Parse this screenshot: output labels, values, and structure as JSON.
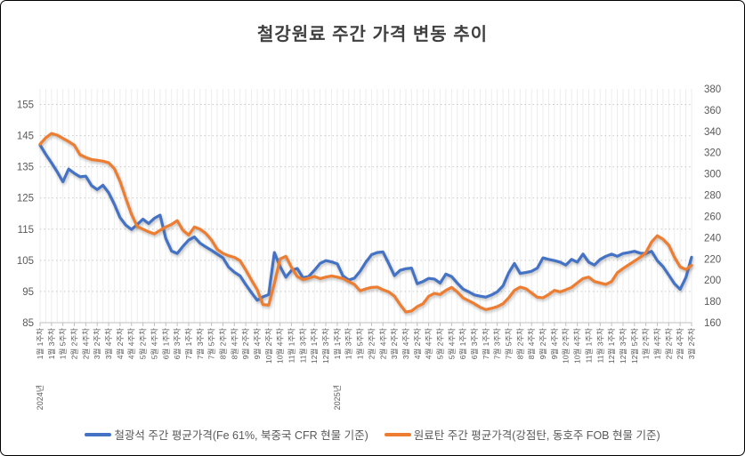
{
  "title": "철강원료 주간 가격 변동 추이",
  "chart_data": {
    "type": "line",
    "title": "철강원료 주간 가격 변동 추이",
    "grid": {
      "vertical": "every-week",
      "horizontal": "dotted-left-axis-major"
    },
    "legend_position": "bottom",
    "left_axis": {
      "min": 85,
      "max": 160,
      "ticks": [
        85,
        95,
        105,
        115,
        125,
        135,
        145,
        155
      ]
    },
    "right_axis": {
      "min": 160,
      "max": 380,
      "ticks": [
        160,
        180,
        200,
        220,
        240,
        260,
        280,
        300,
        320,
        340,
        360,
        380
      ]
    },
    "x_label_every_n_weeks": 2,
    "x_labels": [
      "1월 1주차",
      "1월 3주차",
      "1월 5주차",
      "2월 2주차",
      "2월 4주차",
      "3월 2주차",
      "3월 4주차",
      "4월 2주차",
      "4월 4주차",
      "5월 2주차",
      "5월 4주차",
      "6월 1주차",
      "6월 3주차",
      "7월 1주차",
      "7월 3주차",
      "7월 5주차",
      "8월 2주차",
      "8월 4주차",
      "9월 2주차",
      "9월 4주차",
      "10월 2주차",
      "10월 4주차",
      "11월 1주차",
      "11월 3주차",
      "12월 1주차",
      "12월 3주차",
      "1월 1주차",
      "1월 3주차",
      "1월 5주차",
      "2월 2주차",
      "2월 4주차",
      "3월 2주차",
      "3월 4주차",
      "4월 2주차",
      "4월 4주차",
      "5월 2주차",
      "5월 4주차",
      "6월 1주차",
      "6월 3주차",
      "7월 1주차",
      "7월 3주차",
      "7월 5주차",
      "8월 2주차",
      "8월 4주차",
      "9월 2주차",
      "9월 4주차",
      "10월 2주차",
      "10월 4주차",
      "11월 1주차",
      "11월 3주차",
      "12월 1주차",
      "12월 3주차",
      "12월 5주차",
      "1월 2주차",
      "1월 4주차",
      "2월 2주차",
      "2월 4주차",
      "3월 2주차"
    ],
    "year_labels": [
      {
        "text": "2024년",
        "label_index": 0
      },
      {
        "text": "2025년",
        "label_index": 26
      }
    ],
    "series": [
      {
        "name": "철광석 주간 평균가격(Fe 61%, 북중국 CFR 현물 기준)",
        "axis": "left",
        "color": "#4472C4",
        "values": [
          142,
          139,
          136.3,
          133.4,
          130.2,
          134.3,
          132.9,
          131.8,
          132,
          129,
          127.7,
          129.1,
          126.7,
          123,
          118.7,
          116.3,
          114.9,
          116.5,
          118.2,
          116.8,
          118.5,
          119.5,
          112,
          108,
          107.2,
          109.5,
          111.5,
          112.5,
          110.5,
          109.3,
          108.2,
          107,
          105.8,
          102.8,
          101.2,
          100,
          97.2,
          94.6,
          92.2,
          93.3,
          94,
          107.5,
          103,
          99.6,
          101.8,
          102.4,
          99.4,
          99.8,
          101.8,
          104,
          104.9,
          104.5,
          103.9,
          100,
          98.7,
          99.3,
          101.5,
          104.4,
          106.8,
          107.5,
          107.7,
          104,
          100.1,
          101.8,
          102.3,
          102.5,
          97.5,
          98.2,
          99.2,
          99,
          97.7,
          100.6,
          99.8,
          97.7,
          95.8,
          94.9,
          93.9,
          93.5,
          93.2,
          93.9,
          94.9,
          96.8,
          101,
          104,
          100.8,
          101.1,
          101.5,
          102.5,
          105.8,
          105.3,
          104.9,
          104.4,
          103.5,
          105.3,
          104.4,
          107,
          104.4,
          103.5,
          105.3,
          106.3,
          107,
          106.3,
          107.2,
          107.5,
          107.9,
          107.3,
          107.2,
          107.9,
          104.9,
          103,
          100.3,
          97.5,
          95.7,
          99.5,
          106
        ]
      },
      {
        "name": "원료탄 주간 평균가격(강점탄, 동호주 FOB 현물 기준)",
        "axis": "right",
        "color": "#ED7D31",
        "values": [
          328,
          334,
          338,
          336.5,
          333.5,
          330.5,
          327,
          318,
          315.5,
          313.5,
          312.8,
          312,
          310.5,
          305,
          293,
          277,
          262,
          250.5,
          248,
          245.5,
          243.5,
          247,
          250,
          252.5,
          256,
          247,
          242.5,
          250,
          248,
          244,
          237.8,
          229,
          225.2,
          223,
          221.5,
          218.3,
          209.5,
          200,
          191,
          177,
          176.5,
          197,
          220,
          222.5,
          212,
          203.5,
          200.5,
          202,
          203.5,
          201.5,
          202.9,
          204,
          202.9,
          201.5,
          198.7,
          196,
          190,
          191.8,
          193.2,
          193.5,
          191,
          189,
          185,
          177,
          170,
          171,
          175.1,
          177.8,
          184.8,
          187.6,
          186.5,
          190.4,
          193.2,
          189,
          183.4,
          180.7,
          177.8,
          174.5,
          172.3,
          173.5,
          175.1,
          177.8,
          183.4,
          190.4,
          193.5,
          192,
          188,
          184,
          183.4,
          186.5,
          190.4,
          189,
          191,
          193.2,
          197.4,
          201.5,
          202.9,
          198.7,
          197.4,
          196,
          198.7,
          207,
          211,
          214.5,
          218,
          221.5,
          226,
          236,
          241.8,
          238.5,
          233,
          221.5,
          212.5,
          210,
          214
        ]
      }
    ]
  }
}
